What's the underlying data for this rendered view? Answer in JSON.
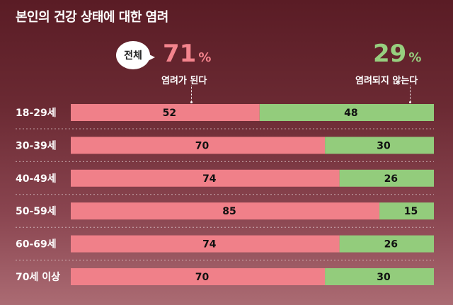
{
  "chart_data": {
    "type": "bar",
    "stacked": true,
    "orientation": "horizontal",
    "title": "본인의 건강 상태에 대한 염려",
    "total": {
      "badge": "전체",
      "worried": {
        "value": "71",
        "unit": "%",
        "label": "염려가 된다"
      },
      "not_worried": {
        "value": "29",
        "unit": "%",
        "label": "염려되지 않는다"
      }
    },
    "categories": [
      "18-29세",
      "30-39세",
      "40-49세",
      "50-59세",
      "60-69세",
      "70세 이상"
    ],
    "series": [
      {
        "name": "염려가 된다",
        "color": "#f08089",
        "values": [
          52,
          70,
          74,
          85,
          74,
          70
        ]
      },
      {
        "name": "염려되지 않는다",
        "color": "#93cc7c",
        "values": [
          48,
          30,
          26,
          15,
          26,
          30
        ]
      }
    ],
    "xlim": [
      0,
      100
    ],
    "grid": false,
    "legend": "top"
  }
}
